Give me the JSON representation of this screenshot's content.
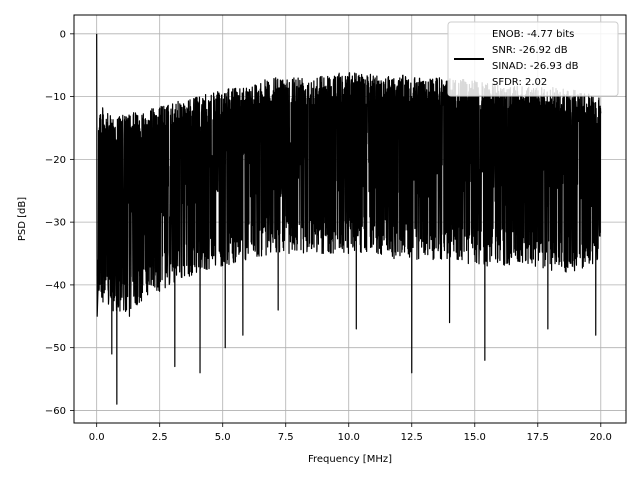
{
  "chart_data": {
    "type": "line",
    "title": "",
    "xlabel": "Frequency [MHz]",
    "ylabel": "PSD [dB]",
    "xlim": [
      -0.9,
      21.0
    ],
    "ylim": [
      -62,
      3
    ],
    "xticks": [
      0.0,
      2.5,
      5.0,
      7.5,
      10.0,
      12.5,
      15.0,
      17.5,
      20.0
    ],
    "xtick_labels": [
      "0.0",
      "2.5",
      "5.0",
      "7.5",
      "10.0",
      "12.5",
      "15.0",
      "17.5",
      "20.0"
    ],
    "yticks": [
      0,
      -10,
      -20,
      -30,
      -40,
      -50,
      -60
    ],
    "ytick_labels": [
      "0",
      "−10",
      "−20",
      "−30",
      "−40",
      "−50",
      "−60"
    ],
    "grid": true,
    "legend": {
      "placement": "top-right",
      "lines": [
        "ENOB: -4.77 bits",
        "SNR: -26.92 dB",
        "SINAD: -26.93 dB",
        "SFDR: 2.02"
      ]
    },
    "series": [
      {
        "color": "#000000",
        "x_range": [
          0,
          20
        ],
        "peak": {
          "x": 0.0,
          "y": 0.0
        },
        "ceiling_profile": {
          "x": [
            0.1,
            0.5,
            1.0,
            2.0,
            3.0,
            4.0,
            5.0,
            6.0,
            7.0,
            8.0,
            9.0,
            10.0,
            11.0,
            12.0,
            13.0,
            14.0,
            15.0,
            16.0,
            17.0,
            18.0,
            19.0,
            20.0
          ],
          "y": [
            -11,
            -13,
            -13,
            -12,
            -11,
            -10,
            -9,
            -8,
            -7,
            -6.5,
            -6.5,
            -6,
            -6.5,
            -6.5,
            -7,
            -7,
            -7.5,
            -8,
            -8.5,
            -8.5,
            -9,
            -10
          ]
        },
        "floor_profile": {
          "x": [
            0.1,
            0.5,
            1.0,
            2.0,
            3.0,
            4.0,
            5.0,
            6.0,
            7.0,
            8.0,
            9.0,
            10.0,
            11.0,
            12.0,
            13.0,
            14.0,
            15.0,
            16.0,
            17.0,
            18.0,
            19.0,
            20.0
          ],
          "y": [
            -42,
            -44,
            -45,
            -42,
            -40,
            -38,
            -37,
            -36,
            -35,
            -35,
            -35,
            -35,
            -35,
            -36,
            -36,
            -36,
            -37,
            -37,
            -37,
            -38,
            -38,
            -36
          ]
        },
        "notches": [
          {
            "x": 0.02,
            "y": -45
          },
          {
            "x": 0.6,
            "y": -51
          },
          {
            "x": 0.8,
            "y": -59
          },
          {
            "x": 1.3,
            "y": -45
          },
          {
            "x": 3.1,
            "y": -53
          },
          {
            "x": 4.1,
            "y": -54
          },
          {
            "x": 5.1,
            "y": -50
          },
          {
            "x": 5.8,
            "y": -48
          },
          {
            "x": 7.2,
            "y": -44
          },
          {
            "x": 10.3,
            "y": -47
          },
          {
            "x": 12.5,
            "y": -54
          },
          {
            "x": 14.0,
            "y": -46
          },
          {
            "x": 15.4,
            "y": -52
          },
          {
            "x": 17.9,
            "y": -47
          },
          {
            "x": 19.8,
            "y": -48
          }
        ]
      }
    ]
  }
}
